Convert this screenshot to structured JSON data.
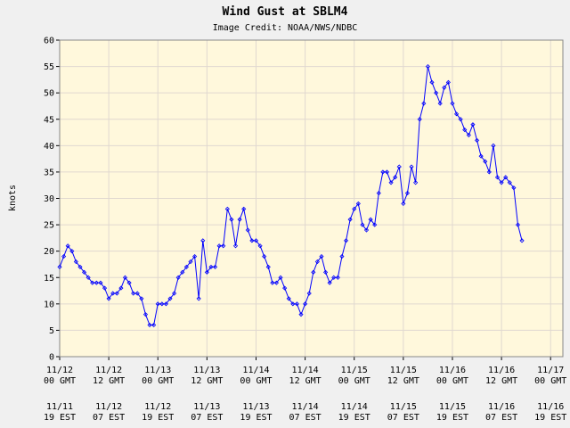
{
  "chart_data": {
    "type": "line",
    "title": "Wind Gust at SBLM4",
    "subtitle": "Image Credit: NOAA/NWS/NDBC",
    "ylabel": "knots",
    "x": [
      0,
      1,
      2,
      3,
      4,
      5,
      6,
      7,
      8,
      9,
      10,
      11,
      12,
      13,
      14,
      15,
      16,
      17,
      18,
      19,
      20,
      21,
      22,
      23,
      24,
      25,
      26,
      27,
      28,
      29,
      30,
      31,
      32,
      33,
      34,
      35,
      36,
      37,
      38,
      39,
      40,
      41,
      42,
      43,
      44,
      45,
      46,
      47,
      48,
      49,
      50,
      51,
      52,
      53,
      54,
      55,
      56,
      57,
      58,
      59,
      60,
      61,
      62,
      63,
      64,
      65,
      66,
      67,
      68,
      69,
      70,
      71,
      72,
      73,
      74,
      75,
      76,
      77,
      78,
      79,
      80,
      81,
      82,
      83,
      84,
      85,
      86,
      87,
      88,
      89,
      90,
      91,
      92,
      93,
      94,
      95,
      96,
      97,
      98,
      99,
      100,
      101,
      102,
      103,
      104,
      105,
      106,
      107,
      108,
      109,
      110,
      111,
      112,
      113
    ],
    "series": [
      {
        "name": "Wind Gust",
        "color": "#0000ff",
        "values": [
          17,
          19,
          21,
          20,
          18,
          17,
          16,
          15,
          14,
          14,
          14,
          13,
          11,
          12,
          12,
          13,
          15,
          14,
          12,
          12,
          11,
          8,
          6,
          6,
          10,
          10,
          10,
          11,
          12,
          15,
          16,
          17,
          18,
          19,
          11,
          22,
          16,
          17,
          17,
          21,
          21,
          28,
          26,
          21,
          26,
          28,
          24,
          22,
          22,
          21,
          19,
          17,
          14,
          14,
          15,
          13,
          11,
          10,
          10,
          8,
          10,
          12,
          16,
          18,
          19,
          16,
          14,
          15,
          15,
          19,
          22,
          26,
          28,
          29,
          25,
          24,
          26,
          25,
          31,
          35,
          35,
          33,
          34,
          36,
          29,
          31,
          36,
          33,
          45,
          48,
          55,
          52,
          50,
          48,
          51,
          52,
          48,
          46,
          45,
          43,
          42,
          44,
          41,
          38,
          37,
          35,
          40,
          34,
          33,
          34,
          33,
          32,
          25,
          22
        ]
      }
    ],
    "xlim": [
      0,
      123
    ],
    "ylim": [
      0,
      60
    ],
    "yticks": [
      0,
      5,
      10,
      15,
      20,
      25,
      30,
      35,
      40,
      45,
      50,
      55,
      60
    ],
    "xticks": [
      {
        "value": 0,
        "label": "11/12 00 GMT"
      },
      {
        "value": 12,
        "label": "11/12 12 GMT"
      },
      {
        "value": 24,
        "label": "11/13 00 GMT"
      },
      {
        "value": 36,
        "label": "11/13 12 GMT"
      },
      {
        "value": 48,
        "label": "11/14 00 GMT"
      },
      {
        "value": 60,
        "label": "11/14 12 GMT"
      },
      {
        "value": 72,
        "label": "11/15 00 GMT"
      },
      {
        "value": 84,
        "label": "11/15 12 GMT"
      },
      {
        "value": 96,
        "label": "11/16 00 GMT"
      },
      {
        "value": 108,
        "label": "11/16 12 GMT"
      },
      {
        "value": 120,
        "label": "11/17 00 GMT"
      }
    ],
    "xticks_local": [
      {
        "value": 0,
        "label": "11/11 19 EST"
      },
      {
        "value": 12,
        "label": "11/12 07 EST"
      },
      {
        "value": 24,
        "label": "11/12 19 EST"
      },
      {
        "value": 36,
        "label": "11/13 07 EST"
      },
      {
        "value": 48,
        "label": "11/13 19 EST"
      },
      {
        "value": 60,
        "label": "11/14 07 EST"
      },
      {
        "value": 72,
        "label": "11/14 19 EST"
      },
      {
        "value": 84,
        "label": "11/15 07 EST"
      },
      {
        "value": 96,
        "label": "11/15 19 EST"
      },
      {
        "value": 108,
        "label": "11/16 07 EST"
      },
      {
        "value": 120,
        "label": "11/16 19 EST"
      }
    ],
    "grid": true
  }
}
